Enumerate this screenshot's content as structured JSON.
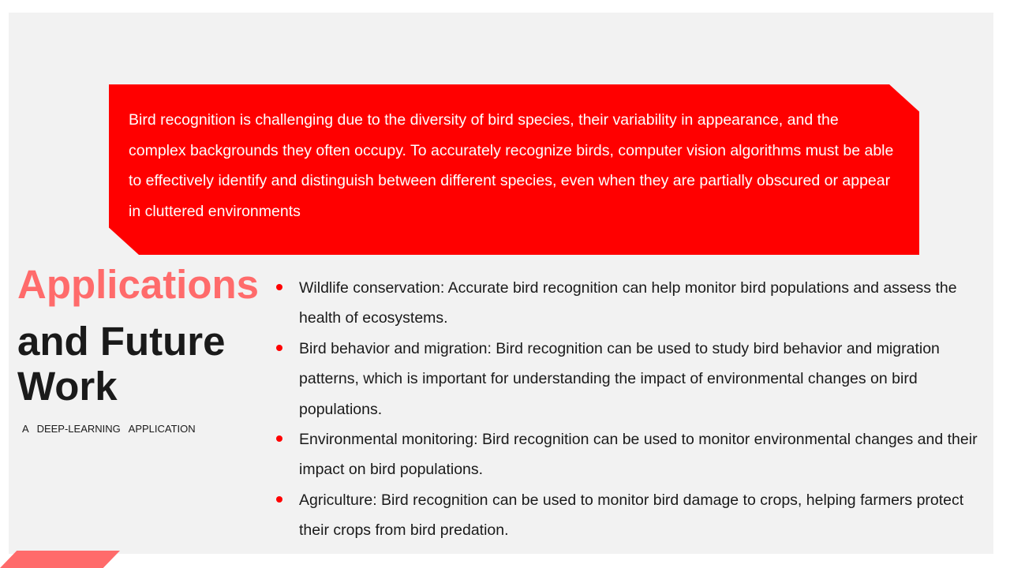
{
  "intro": {
    "text": "Bird recognition is challenging due to the diversity of bird species, their variability in appearance, and the complex backgrounds they often occupy. To accurately recognize birds, computer vision algorithms must be able to effectively identify and distinguish between different species, even when they are partially obscured or appear in cluttered environments"
  },
  "title": {
    "line1": "Applications",
    "line2": "and Future Work"
  },
  "subtitle": "A DEEP-LEARNING APPLICATION",
  "bullets": [
    "Wildlife conservation: Accurate bird recognition can help monitor bird populations and assess the health of ecosystems.",
    "Bird behavior and migration: Bird recognition can be used to study bird behavior and migration patterns, which is important for understanding the impact of environmental changes on bird populations.",
    "Environmental monitoring: Bird recognition can be used to monitor environmental changes and their impact on bird populations.",
    "Agriculture: Bird recognition can be used to monitor bird damage to crops, helping farmers protect their crops from bird predation."
  ],
  "colors": {
    "accent_red": "#ff0000",
    "title_coral": "#ff6b6b",
    "background": "#f2f2f2",
    "text_dark": "#1a1a1a"
  }
}
